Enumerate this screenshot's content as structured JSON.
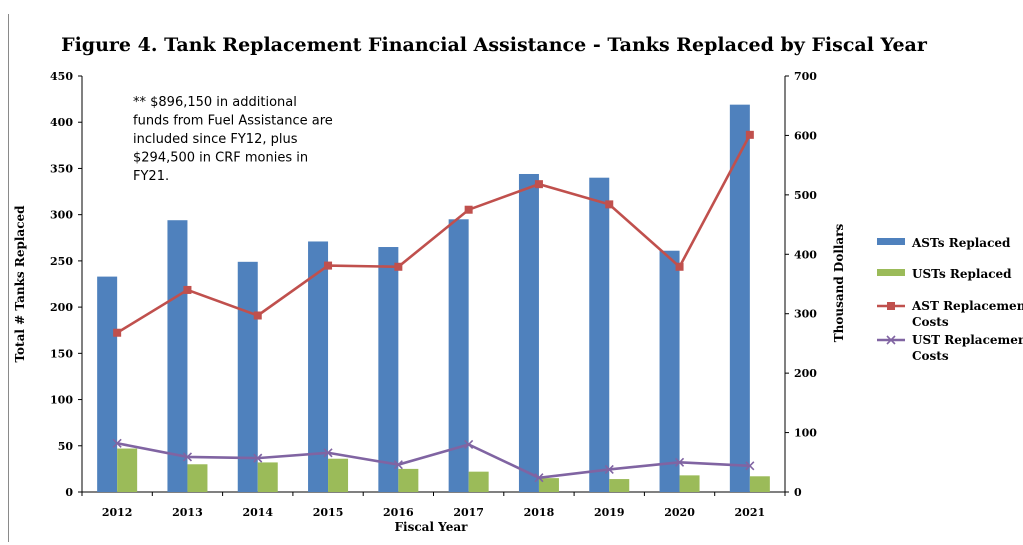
{
  "chart_data": {
    "type": "bar",
    "title": "Figure 4. Tank Replacement Financial Assistance - Tanks Replaced by Fiscal Year",
    "xlabel": "Fiscal Year",
    "ylabel": "Total # Tanks Replaced",
    "y2label": "Thousand Dollars",
    "categories": [
      "2012",
      "2013",
      "2014",
      "2015",
      "2016",
      "2017",
      "2018",
      "2019",
      "2020",
      "2021"
    ],
    "ylim": [
      0,
      450
    ],
    "yticks": [
      "0",
      "50",
      "100",
      "150",
      "200",
      "250",
      "300",
      "350",
      "400",
      "450"
    ],
    "y2lim": [
      0,
      700
    ],
    "y2ticks": [
      "0",
      "100",
      "200",
      "300",
      "400",
      "500",
      "600",
      "700"
    ],
    "grid": false,
    "legend_position": "right",
    "series": [
      {
        "name": "ASTs Replaced",
        "kind": "bar",
        "axis": "left",
        "color": "#4f81bd",
        "values": [
          233,
          294,
          249,
          271,
          265,
          295,
          344,
          340,
          261,
          419
        ]
      },
      {
        "name": "USTs Replaced",
        "kind": "bar",
        "axis": "left",
        "color": "#9bbb59",
        "values": [
          47,
          30,
          32,
          36,
          25,
          22,
          15,
          14,
          18,
          17
        ]
      },
      {
        "name": "AST Replacement Costs",
        "kind": "line",
        "axis": "right",
        "color": "#c0504d",
        "marker": "square",
        "values": [
          268,
          340,
          297,
          381,
          379,
          475,
          518,
          484,
          379,
          601
        ]
      },
      {
        "name": "UST Replacement Costs",
        "kind": "line",
        "axis": "right",
        "color": "#8064a2",
        "marker": "x",
        "values": [
          82,
          59,
          57,
          66,
          46,
          80,
          24,
          38,
          50,
          44
        ]
      }
    ],
    "annotation": [
      "** $896,150 in additional",
      "funds from Fuel Assistance are",
      "included since FY12, plus",
      "$294,500 in CRF monies in",
      "FY21."
    ]
  }
}
